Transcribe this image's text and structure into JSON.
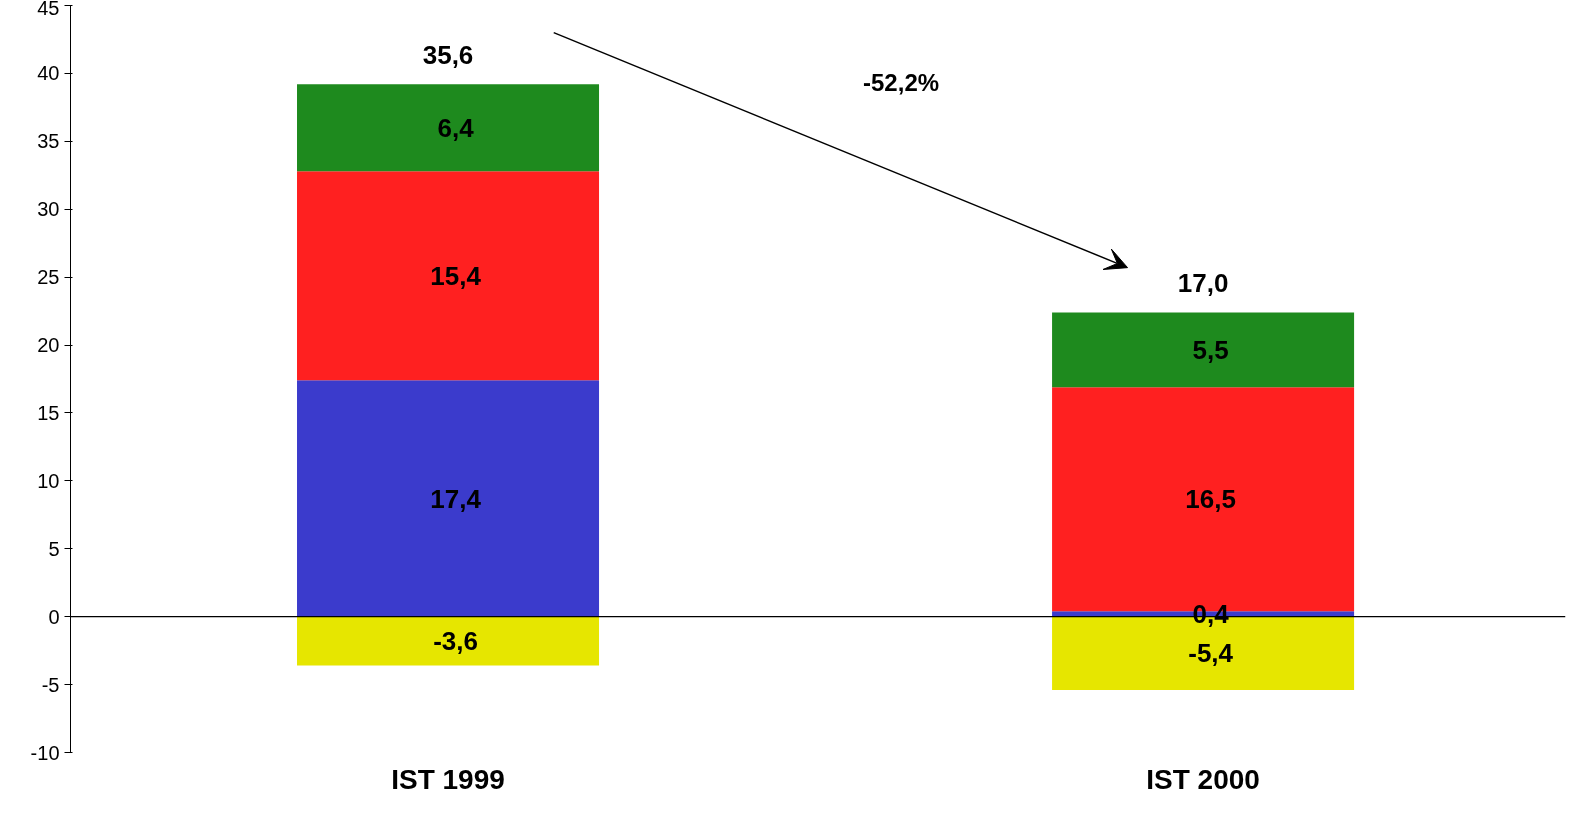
{
  "chart_data": {
    "type": "bar",
    "stacked": true,
    "categories": [
      "IST 1999",
      "IST 2000"
    ],
    "series": [
      {
        "color": "#e6e600",
        "values": [
          -3.6,
          -5.4
        ],
        "value_labels": [
          "-3,6",
          "-5,4"
        ]
      },
      {
        "color": "#3b3bcc",
        "values": [
          17.4,
          0.4
        ],
        "value_labels": [
          "17,4",
          "0,4"
        ]
      },
      {
        "color": "#ff2020",
        "values": [
          15.4,
          16.5
        ],
        "value_labels": [
          "15,4",
          "16,5"
        ]
      },
      {
        "color": "#1e8a1e",
        "values": [
          6.4,
          5.5
        ],
        "value_labels": [
          "6,4",
          "5,5"
        ]
      }
    ],
    "totals": [
      "35,6",
      "17,0"
    ],
    "annotations": [
      "-52,2%"
    ],
    "ylim": [
      -10,
      45
    ],
    "yticks": [
      -10,
      -5,
      0,
      5,
      10,
      15,
      20,
      25,
      30,
      35,
      40,
      45
    ],
    "line_style": "solid"
  }
}
